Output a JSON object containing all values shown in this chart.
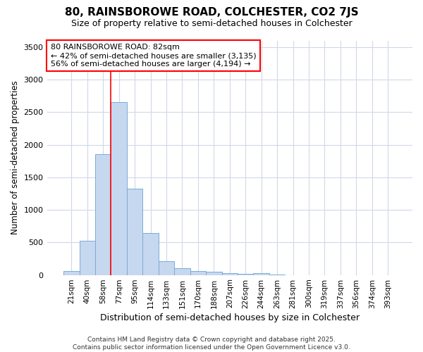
{
  "title1": "80, RAINSBOROWE ROAD, COLCHESTER, CO2 7JS",
  "title2": "Size of property relative to semi-detached houses in Colchester",
  "xlabel": "Distribution of semi-detached houses by size in Colchester",
  "ylabel": "Number of semi-detached properties",
  "bar_labels": [
    "21sqm",
    "40sqm",
    "58sqm",
    "77sqm",
    "95sqm",
    "114sqm",
    "133sqm",
    "151sqm",
    "170sqm",
    "188sqm",
    "207sqm",
    "226sqm",
    "244sqm",
    "263sqm",
    "281sqm",
    "300sqm",
    "319sqm",
    "337sqm",
    "356sqm",
    "374sqm",
    "393sqm"
  ],
  "bar_values": [
    65,
    530,
    1850,
    2650,
    1320,
    640,
    215,
    105,
    65,
    45,
    30,
    20,
    25,
    5,
    0,
    0,
    0,
    0,
    0,
    0,
    0
  ],
  "bar_color": "#c5d8f0",
  "bar_edge_color": "#7baad4",
  "annotation_text": "80 RAINSBOROWE ROAD: 82sqm\n← 42% of semi-detached houses are smaller (3,135)\n56% of semi-detached houses are larger (4,194) →",
  "footer": "Contains HM Land Registry data © Crown copyright and database right 2025.\nContains public sector information licensed under the Open Government Licence v3.0.",
  "ylim": [
    0,
    3600
  ],
  "background_color": "#ffffff",
  "grid_color": "#d0d8e8",
  "title1_fontsize": 11,
  "title2_fontsize": 9,
  "red_line_bar_index": 3
}
